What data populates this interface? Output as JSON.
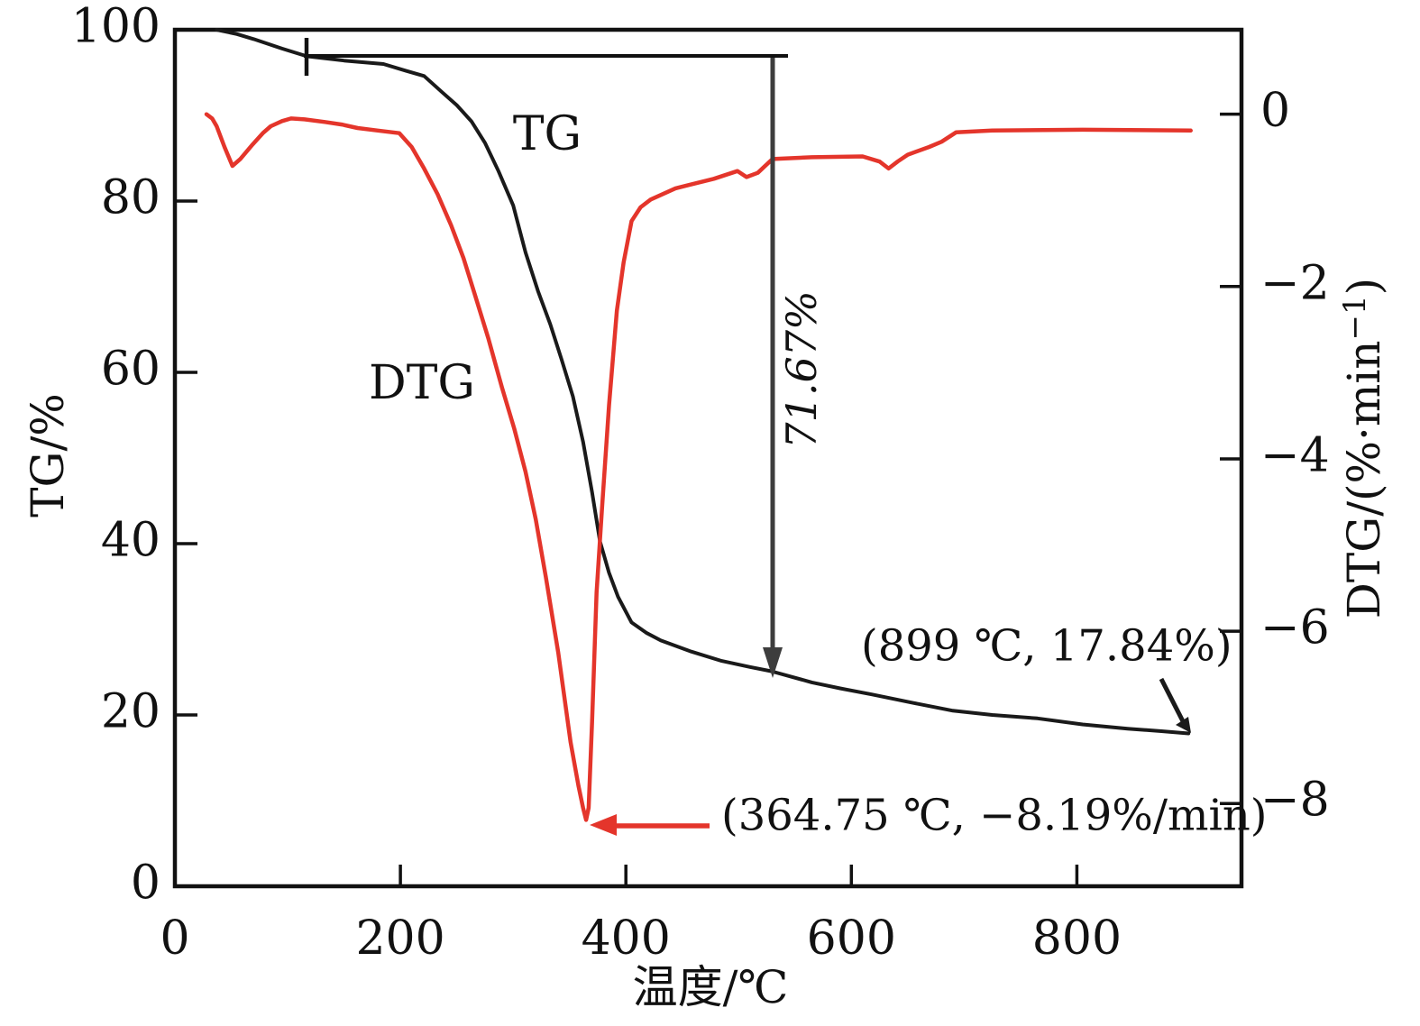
{
  "figure": {
    "background": "#ffffff",
    "xlabel": "温度/℃",
    "ylabel_left": "TG/%",
    "ylabel_right_parts": [
      "DTG/(%·min",
      "−1",
      ")"
    ]
  },
  "colors": {
    "tg_curve": "#1a1a1a",
    "dtg_curve": "#e4352b",
    "axis": "#111111",
    "drop_arrow_gray": "#3d3d3d"
  },
  "chart_data": {
    "type": "line",
    "title": "",
    "xlabel": "温度/℃",
    "ylabel_left": "TG/%",
    "ylabel_right": "DTG/(%·min−1)",
    "x_range": [
      0,
      946
    ],
    "tg_range": [
      0,
      100
    ],
    "dtg_range": [
      0.98,
      -8.96
    ],
    "x_ticks": [
      0,
      200,
      400,
      600,
      800
    ],
    "left_ticks": [
      0,
      20,
      40,
      60,
      80,
      100
    ],
    "right_ticks": [
      0,
      -2,
      -4,
      -6,
      -8
    ],
    "grid": false,
    "legend_position": "none",
    "series": [
      {
        "name": "TG",
        "axis": "left",
        "color": "#1a1a1a",
        "points": [
          [
            37,
            100
          ],
          [
            55,
            99.5
          ],
          [
            70,
            98.9
          ],
          [
            95,
            97.8
          ],
          [
            117,
            96.9
          ],
          [
            150,
            96.4
          ],
          [
            185,
            96.0
          ],
          [
            205,
            95.2
          ],
          [
            221,
            94.6
          ],
          [
            237,
            92.7
          ],
          [
            250,
            91.2
          ],
          [
            263,
            89.3
          ],
          [
            275,
            86.8
          ],
          [
            287,
            83.5
          ],
          [
            300,
            79.5
          ],
          [
            311,
            74.0
          ],
          [
            322,
            69.5
          ],
          [
            333,
            65.6
          ],
          [
            343,
            61.5
          ],
          [
            353,
            57.2
          ],
          [
            362,
            51.9
          ],
          [
            370,
            46.0
          ],
          [
            377,
            40.3
          ],
          [
            385,
            36.6
          ],
          [
            393,
            33.8
          ],
          [
            405,
            30.8
          ],
          [
            418,
            29.6
          ],
          [
            431,
            28.7
          ],
          [
            458,
            27.4
          ],
          [
            485,
            26.3
          ],
          [
            510,
            25.6
          ],
          [
            529,
            25.1
          ],
          [
            565,
            23.8
          ],
          [
            590,
            23.1
          ],
          [
            618,
            22.4
          ],
          [
            655,
            21.4
          ],
          [
            690,
            20.5
          ],
          [
            725,
            20.0
          ],
          [
            765,
            19.6
          ],
          [
            805,
            18.9
          ],
          [
            845,
            18.4
          ],
          [
            875,
            18.1
          ],
          [
            899,
            17.84
          ]
        ]
      },
      {
        "name": "DTG",
        "axis": "right",
        "color": "#e4352b",
        "points": [
          [
            28,
            0.0
          ],
          [
            33,
            -0.05
          ],
          [
            37,
            -0.14
          ],
          [
            44,
            -0.38
          ],
          [
            51,
            -0.6
          ],
          [
            58,
            -0.52
          ],
          [
            69,
            -0.35
          ],
          [
            78,
            -0.22
          ],
          [
            85,
            -0.14
          ],
          [
            95,
            -0.08
          ],
          [
            103,
            -0.05
          ],
          [
            115,
            -0.06
          ],
          [
            133,
            -0.09
          ],
          [
            148,
            -0.12
          ],
          [
            162,
            -0.16
          ],
          [
            180,
            -0.19
          ],
          [
            199,
            -0.22
          ],
          [
            210,
            -0.38
          ],
          [
            221,
            -0.63
          ],
          [
            233,
            -0.93
          ],
          [
            245,
            -1.29
          ],
          [
            256,
            -1.67
          ],
          [
            266,
            -2.09
          ],
          [
            278,
            -2.6
          ],
          [
            290,
            -3.17
          ],
          [
            301,
            -3.65
          ],
          [
            311,
            -4.15
          ],
          [
            320,
            -4.7
          ],
          [
            329,
            -5.37
          ],
          [
            340,
            -6.25
          ],
          [
            351,
            -7.29
          ],
          [
            358,
            -7.8
          ],
          [
            362,
            -8.05
          ],
          [
            364.75,
            -8.19
          ],
          [
            367,
            -8.05
          ],
          [
            370,
            -7.05
          ],
          [
            374,
            -5.55
          ],
          [
            379,
            -4.53
          ],
          [
            385,
            -3.38
          ],
          [
            392,
            -2.28
          ],
          [
            398,
            -1.72
          ],
          [
            405,
            -1.24
          ],
          [
            413,
            -1.08
          ],
          [
            422,
            -0.99
          ],
          [
            444,
            -0.86
          ],
          [
            478,
            -0.75
          ],
          [
            499,
            -0.66
          ],
          [
            507,
            -0.73
          ],
          [
            517,
            -0.68
          ],
          [
            530,
            -0.52
          ],
          [
            565,
            -0.5
          ],
          [
            610,
            -0.49
          ],
          [
            625,
            -0.55
          ],
          [
            633,
            -0.63
          ],
          [
            641,
            -0.55
          ],
          [
            650,
            -0.47
          ],
          [
            669,
            -0.38
          ],
          [
            680,
            -0.32
          ],
          [
            693,
            -0.21
          ],
          [
            725,
            -0.19
          ],
          [
            805,
            -0.18
          ],
          [
            901,
            -0.19
          ]
        ]
      }
    ],
    "annotations": {
      "tg_series_label": "TG",
      "dtg_series_label": "DTG",
      "mass_loss_label": "71.67%",
      "tg_end_label": "(899 ℃, 17.84%)",
      "dtg_peak_label": "(364.75 ℃, −8.19%/min)"
    }
  }
}
